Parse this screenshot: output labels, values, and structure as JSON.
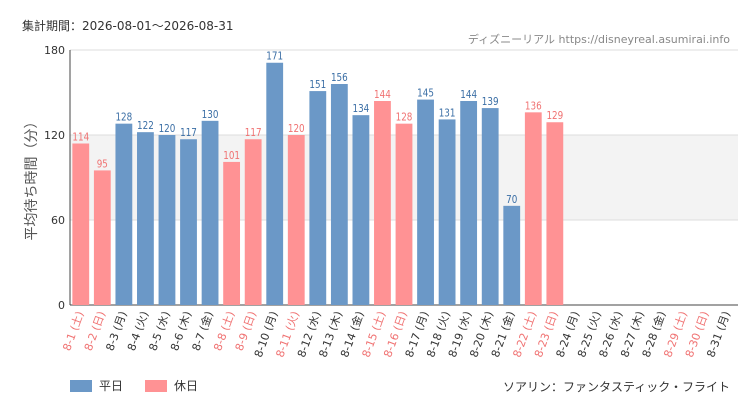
{
  "period_label": "集計期間：2026-08-01～2026-08-31",
  "site_credit": "ディズニーリアル https://disneyreal.asumirai.info",
  "ride_name": "ソアリン：ファンタスティック・フライト",
  "colors": {
    "weekday": "#6b98c7",
    "holiday": "#ff9294",
    "holiday_text": "#f07272",
    "weekday_text": "#3a6ea5"
  },
  "chart_data": {
    "type": "bar",
    "ylabel": "平均待ち時間（分）",
    "ylim": [
      0,
      180
    ],
    "yticks": [
      0,
      60,
      120,
      180
    ],
    "shaded_band": [
      60,
      120
    ],
    "grid": true,
    "legend": {
      "position": "bottom-left",
      "entries": [
        {
          "key": "weekday",
          "label": "平日"
        },
        {
          "key": "holiday",
          "label": "休日"
        }
      ]
    },
    "categories": [
      "8-1 (土)",
      "8-2 (日)",
      "8-3 (月)",
      "8-4 (火)",
      "8-5 (水)",
      "8-6 (木)",
      "8-7 (金)",
      "8-8 (土)",
      "8-9 (日)",
      "8-10 (月)",
      "8-11 (火)",
      "8-12 (水)",
      "8-13 (木)",
      "8-14 (金)",
      "8-15 (土)",
      "8-16 (日)",
      "8-17 (月)",
      "8-18 (火)",
      "8-19 (水)",
      "8-20 (木)",
      "8-21 (金)",
      "8-22 (土)",
      "8-23 (日)",
      "8-24 (月)",
      "8-25 (火)",
      "8-26 (水)",
      "8-27 (木)",
      "8-28 (金)",
      "8-29 (土)",
      "8-30 (日)",
      "8-31 (月)"
    ],
    "day_type": [
      "holiday",
      "holiday",
      "weekday",
      "weekday",
      "weekday",
      "weekday",
      "weekday",
      "holiday",
      "holiday",
      "weekday",
      "holiday",
      "weekday",
      "weekday",
      "weekday",
      "holiday",
      "holiday",
      "weekday",
      "weekday",
      "weekday",
      "weekday",
      "weekday",
      "holiday",
      "holiday",
      "weekday",
      "weekday",
      "weekday",
      "weekday",
      "weekday",
      "holiday",
      "holiday",
      "weekday"
    ],
    "values": [
      114,
      95,
      128,
      122,
      120,
      117,
      130,
      101,
      117,
      171,
      120,
      151,
      156,
      134,
      144,
      128,
      145,
      131,
      144,
      139,
      70,
      136,
      129,
      null,
      null,
      null,
      null,
      null,
      null,
      null,
      null
    ]
  }
}
